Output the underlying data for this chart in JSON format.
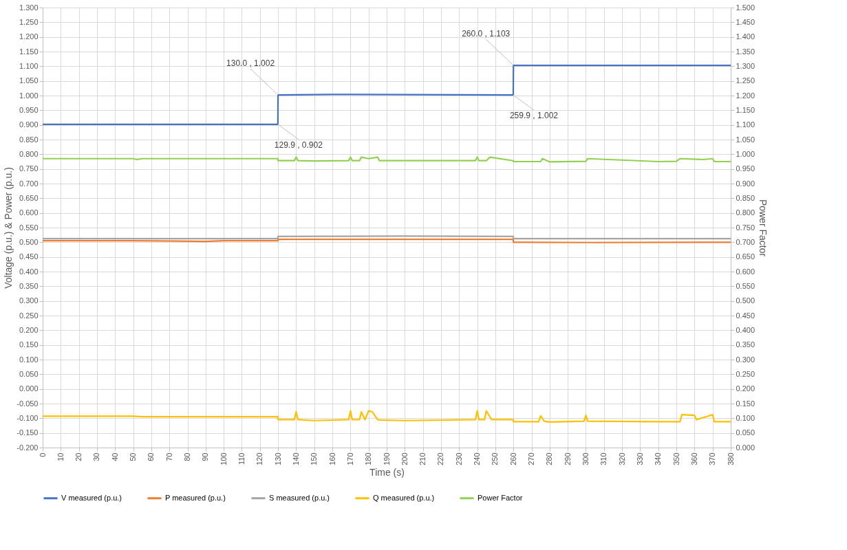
{
  "chart_data": {
    "type": "line",
    "xlabel": "Time (s)",
    "ylabel": "Voltage (p.u.) & Power (p.u.)",
    "y2label": "Power Factor",
    "xlim": [
      0,
      380
    ],
    "xticks": [
      0,
      10,
      20,
      30,
      40,
      50,
      60,
      70,
      80,
      90,
      100,
      110,
      120,
      130,
      140,
      150,
      160,
      170,
      180,
      190,
      200,
      210,
      220,
      230,
      240,
      250,
      260,
      270,
      280,
      290,
      300,
      310,
      320,
      330,
      340,
      350,
      360,
      370,
      380
    ],
    "ylim": [
      -0.2,
      1.3
    ],
    "yticks": [
      {
        "value": -0.2,
        "label": "-0.200"
      },
      {
        "value": -0.15,
        "label": "-0.150"
      },
      {
        "value": -0.1,
        "label": "-0.100"
      },
      {
        "value": -0.05,
        "label": "-0.050"
      },
      {
        "value": 0,
        "label": "0.000"
      },
      {
        "value": 0.05,
        "label": "0.050"
      },
      {
        "value": 0.1,
        "label": "0.100"
      },
      {
        "value": 0.15,
        "label": "0.150"
      },
      {
        "value": 0.2,
        "label": "0.200"
      },
      {
        "value": 0.25,
        "label": "0.250"
      },
      {
        "value": 0.3,
        "label": "0.300"
      },
      {
        "value": 0.35,
        "label": "0.350"
      },
      {
        "value": 0.4,
        "label": "0.400"
      },
      {
        "value": 0.45,
        "label": "0.450"
      },
      {
        "value": 0.5,
        "label": "0.500"
      },
      {
        "value": 0.55,
        "label": "0.550"
      },
      {
        "value": 0.6,
        "label": "0.600"
      },
      {
        "value": 0.65,
        "label": "0.650"
      },
      {
        "value": 0.7,
        "label": "0.700"
      },
      {
        "value": 0.75,
        "label": "0.750"
      },
      {
        "value": 0.8,
        "label": "0.800"
      },
      {
        "value": 0.85,
        "label": "0.850"
      },
      {
        "value": 0.9,
        "label": "0.900"
      },
      {
        "value": 0.95,
        "label": "0.950"
      },
      {
        "value": 1.0,
        "label": "1.000"
      },
      {
        "value": 1.05,
        "label": "1.050"
      },
      {
        "value": 1.1,
        "label": "1.100"
      },
      {
        "value": 1.15,
        "label": "1.150"
      },
      {
        "value": 1.2,
        "label": "1.200"
      },
      {
        "value": 1.25,
        "label": "1.250"
      },
      {
        "value": 1.3,
        "label": "1.300"
      }
    ],
    "y2lim": [
      0,
      1.5
    ],
    "y2ticks": [
      {
        "value": 0,
        "label": "0.000"
      },
      {
        "value": 0.05,
        "label": "0.050"
      },
      {
        "value": 0.1,
        "label": "0.100"
      },
      {
        "value": 0.15,
        "label": "0.150"
      },
      {
        "value": 0.2,
        "label": "0.200"
      },
      {
        "value": 0.25,
        "label": "0.250"
      },
      {
        "value": 0.3,
        "label": "0.300"
      },
      {
        "value": 0.35,
        "label": "0.350"
      },
      {
        "value": 0.4,
        "label": "0.400"
      },
      {
        "value": 0.45,
        "label": "0.450"
      },
      {
        "value": 0.5,
        "label": "0.500"
      },
      {
        "value": 0.55,
        "label": "0.550"
      },
      {
        "value": 0.6,
        "label": "0.600"
      },
      {
        "value": 0.65,
        "label": "0.650"
      },
      {
        "value": 0.7,
        "label": "0.700"
      },
      {
        "value": 0.75,
        "label": "0.750"
      },
      {
        "value": 0.8,
        "label": "0.800"
      },
      {
        "value": 0.85,
        "label": "0.850"
      },
      {
        "value": 0.9,
        "label": "0.900"
      },
      {
        "value": 0.95,
        "label": "0.950"
      },
      {
        "value": 1.0,
        "label": "1.000"
      },
      {
        "value": 1.05,
        "label": "1.050"
      },
      {
        "value": 1.1,
        "label": "1.100"
      },
      {
        "value": 1.15,
        "label": "1.150"
      },
      {
        "value": 1.2,
        "label": "1.200"
      },
      {
        "value": 1.25,
        "label": "1.250"
      },
      {
        "value": 1.3,
        "label": "1.300"
      },
      {
        "value": 1.35,
        "label": "1.350"
      },
      {
        "value": 1.4,
        "label": "1.400"
      },
      {
        "value": 1.45,
        "label": "1.450"
      },
      {
        "value": 1.5,
        "label": "1.500"
      }
    ],
    "grid": true,
    "legend": "bottom",
    "marker": "none",
    "line_style": "solid",
    "series": [
      {
        "name": "V measured (p.u.)",
        "color": "#4472c4",
        "x": [
          0,
          50,
          100,
          129.9,
          130,
          160,
          200,
          259.9,
          260,
          300,
          340,
          380
        ],
        "values": [
          0.902,
          0.902,
          0.902,
          0.902,
          1.002,
          1.004,
          1.003,
          1.002,
          1.103,
          1.103,
          1.103,
          1.103
        ]
      },
      {
        "name": "P measured (p.u.)",
        "color": "#ed7d31",
        "x": [
          0,
          50,
          90,
          100,
          129.9,
          130,
          200,
          259.9,
          260,
          300,
          380
        ],
        "values": [
          0.505,
          0.505,
          0.503,
          0.505,
          0.505,
          0.51,
          0.51,
          0.51,
          0.5,
          0.499,
          0.5
        ]
      },
      {
        "name": "S measured (p.u.)",
        "color": "#a5a5a5",
        "x": [
          0,
          129.9,
          130,
          200,
          259.9,
          260,
          380
        ],
        "values": [
          0.512,
          0.512,
          0.52,
          0.521,
          0.52,
          0.512,
          0.512
        ]
      },
      {
        "name": "Q measured (p.u.)",
        "color": "#ffc000",
        "x": [
          0,
          50,
          55,
          129.9,
          130,
          139,
          140,
          141,
          150,
          169,
          170,
          171,
          175,
          176,
          178,
          180,
          182,
          185,
          186,
          200,
          239,
          240,
          241,
          244,
          245,
          248,
          259.9,
          260,
          274,
          275,
          277,
          280,
          299,
          300,
          301,
          340,
          352,
          353,
          360,
          361,
          370,
          371,
          380
        ],
        "values": [
          -0.093,
          -0.093,
          -0.095,
          -0.095,
          -0.105,
          -0.105,
          -0.078,
          -0.105,
          -0.108,
          -0.105,
          -0.075,
          -0.105,
          -0.105,
          -0.078,
          -0.105,
          -0.075,
          -0.078,
          -0.105,
          -0.106,
          -0.108,
          -0.105,
          -0.075,
          -0.105,
          -0.105,
          -0.075,
          -0.105,
          -0.105,
          -0.112,
          -0.112,
          -0.092,
          -0.11,
          -0.113,
          -0.11,
          -0.09,
          -0.11,
          -0.112,
          -0.112,
          -0.088,
          -0.09,
          -0.105,
          -0.088,
          -0.112,
          -0.112
        ]
      },
      {
        "name": "Power Factor",
        "color": "#92d050",
        "axis": "y2",
        "x": [
          0,
          50,
          52,
          55,
          129.9,
          130,
          139,
          140,
          141,
          150,
          169,
          170,
          171,
          175,
          176,
          180,
          185,
          186,
          239,
          240,
          241,
          245,
          247,
          259.9,
          260,
          275,
          276,
          280,
          300,
          301,
          340,
          350,
          352,
          365,
          370,
          371,
          380
        ],
        "values": [
          0.985,
          0.985,
          0.982,
          0.985,
          0.985,
          0.978,
          0.978,
          0.99,
          0.978,
          0.977,
          0.978,
          0.99,
          0.978,
          0.978,
          0.99,
          0.985,
          0.99,
          0.978,
          0.978,
          0.99,
          0.978,
          0.978,
          0.99,
          0.978,
          0.975,
          0.975,
          0.985,
          0.974,
          0.976,
          0.985,
          0.975,
          0.976,
          0.985,
          0.982,
          0.985,
          0.975,
          0.975
        ]
      }
    ],
    "annotations": [
      {
        "text": "130.0 , 1.002",
        "x": 130.0,
        "y": 1.002
      },
      {
        "text": "129.9 , 0.902",
        "x": 129.9,
        "y": 0.902
      },
      {
        "text": "260.0 , 1.103",
        "x": 260.0,
        "y": 1.103
      },
      {
        "text": "259.9 , 1.002",
        "x": 259.9,
        "y": 1.002
      }
    ]
  }
}
